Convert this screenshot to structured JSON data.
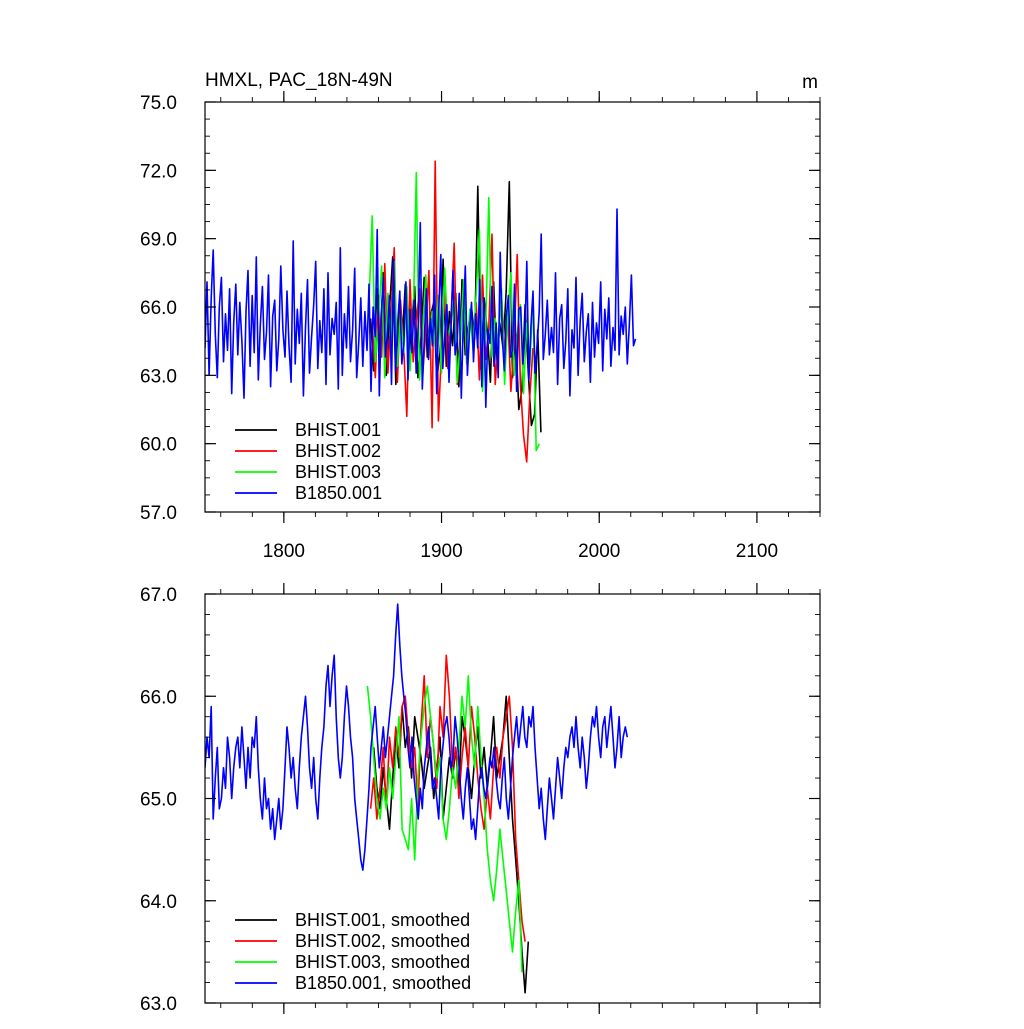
{
  "chart_data": [
    {
      "type": "line",
      "title": "HMXL, PAC_18N-49N",
      "units": "m",
      "xlim": [
        1750,
        2140
      ],
      "ylim": [
        57.0,
        75.0
      ],
      "xticks": [
        1800,
        1900,
        2000,
        2100
      ],
      "xtick_labels": [
        "1800",
        "1900",
        "2000",
        "2100"
      ],
      "yticks": [
        57.0,
        60.0,
        63.0,
        66.0,
        69.0,
        72.0,
        75.0
      ],
      "ytick_labels": [
        "57.0",
        "60.0",
        "63.0",
        "66.0",
        "69.0",
        "72.0",
        "75.0"
      ],
      "legend_position": "lower-left",
      "series": [
        {
          "name": "BHIST.001",
          "color": "#000000",
          "x_start": 1855,
          "x_step": 2,
          "values": [
            65.5,
            63.2,
            66.8,
            64.1,
            67.5,
            63.0,
            65.9,
            68.2,
            62.6,
            66.1,
            64.4,
            67.0,
            63.5,
            65.2,
            66.9,
            62.9,
            64.7,
            67.3,
            63.8,
            65.6,
            66.2,
            62.8,
            64.0,
            68.1,
            63.4,
            65.8,
            64.3,
            66.6,
            62.5,
            67.2,
            63.9,
            65.1,
            66.0,
            64.6,
            71.3,
            63.3,
            66.4,
            64.9,
            62.7,
            67.1,
            63.6,
            65.3,
            64.2,
            66.7,
            71.5,
            62.9,
            64.8,
            61.5,
            62.4,
            66.1,
            63.1,
            60.8,
            61.3,
            65.0,
            60.5
          ]
        },
        {
          "name": "BHIST.002",
          "color": "#ff0000",
          "x_start": 1856,
          "x_step": 2,
          "values": [
            65.3,
            62.9,
            66.5,
            63.8,
            67.9,
            63.1,
            65.7,
            68.6,
            62.7,
            66.3,
            64.2,
            61.2,
            67.2,
            63.6,
            65.4,
            66.8,
            63.0,
            64.9,
            67.6,
            60.7,
            72.4,
            61.0,
            64.1,
            66.7,
            63.3,
            65.5,
            68.8,
            62.6,
            64.8,
            67.0,
            63.5,
            65.9,
            64.5,
            66.2,
            62.8,
            67.4,
            63.7,
            65.1,
            69.2,
            62.6,
            64.6,
            66.5,
            63.9,
            65.6,
            62.3,
            64.4,
            68.3,
            62.6,
            60.4,
            59.2,
            62.1,
            64.2
          ]
        },
        {
          "name": "BHIST.003",
          "color": "#00ff00",
          "x_start": 1854,
          "x_step": 2,
          "values": [
            66.2,
            70.0,
            63.6,
            65.3,
            67.8,
            62.9,
            66.6,
            64.5,
            68.0,
            63.4,
            65.7,
            64.0,
            66.9,
            63.2,
            65.4,
            71.9,
            62.8,
            64.9,
            67.4,
            63.9,
            65.8,
            64.2,
            66.5,
            63.1,
            67.7,
            64.7,
            65.2,
            66.3,
            62.7,
            64.6,
            67.2,
            63.5,
            65.9,
            64.1,
            66.6,
            69.4,
            62.3,
            65.0,
            70.8,
            63.8,
            65.5,
            64.3,
            66.8,
            62.6,
            65.7,
            67.5,
            63.0,
            64.8,
            66.1,
            62.2,
            65.3,
            63.4,
            66.4,
            59.7,
            60.0
          ]
        },
        {
          "name": "B1850.001",
          "color": "#0000ff",
          "x_start": 1750,
          "x_step": 1.3,
          "values": [
            64.2,
            67.1,
            63.0,
            66.4,
            68.5,
            64.8,
            62.9,
            66.0,
            67.3,
            63.6,
            65.7,
            64.1,
            66.8,
            62.2,
            65.3,
            67.0,
            63.9,
            66.2,
            64.5,
            62.0,
            65.8,
            67.6,
            63.4,
            66.5,
            64.0,
            68.2,
            62.8,
            65.2,
            66.9,
            63.7,
            64.9,
            67.4,
            62.5,
            65.6,
            66.3,
            63.2,
            64.6,
            67.8,
            65.0,
            63.8,
            66.7,
            64.3,
            62.7,
            68.9,
            63.5,
            65.9,
            64.4,
            66.6,
            62.1,
            65.1,
            67.2,
            63.1,
            64.7,
            66.1,
            68.0,
            63.3,
            65.4,
            64.0,
            66.8,
            62.6,
            67.5,
            63.9,
            65.5,
            64.8,
            66.2,
            62.4,
            68.6,
            63.0,
            65.7,
            64.2,
            66.9,
            63.6,
            65.0,
            67.7,
            62.9,
            64.5,
            66.4,
            63.4,
            65.8,
            64.1,
            67.0,
            62.3,
            66.0,
            64.7,
            69.4,
            62.1,
            65.6,
            67.3,
            63.8,
            64.9,
            66.5,
            62.6,
            68.1,
            63.2,
            65.3,
            66.7,
            63.5,
            64.4,
            67.1,
            62.8,
            65.9,
            64.0,
            66.3,
            63.1,
            65.2,
            69.7,
            62.4,
            64.6,
            66.8,
            63.7,
            65.5,
            64.3,
            67.4,
            62.2,
            65.8,
            68.3,
            63.3,
            64.8,
            66.1,
            62.7,
            65.1,
            67.6,
            63.9,
            64.5,
            66.6,
            62.0,
            65.4,
            67.8,
            63.0,
            64.9,
            66.2,
            63.6,
            65.7,
            64.2,
            67.2,
            62.5,
            66.4,
            61.6,
            65.0,
            64.4,
            66.9,
            63.4,
            65.3,
            62.9,
            68.4,
            64.7,
            63.2,
            65.6,
            66.5,
            63.8,
            64.1,
            67.0,
            62.3,
            65.9,
            66.0,
            63.5,
            64.6,
            68.0,
            62.8,
            65.2,
            66.7,
            63.1,
            64.3,
            65.8,
            69.2,
            63.7,
            64.8,
            66.3,
            63.9,
            65.1,
            64.0,
            67.5,
            62.6,
            65.5,
            66.1,
            63.3,
            64.5,
            66.8,
            62.1,
            65.0,
            64.2,
            67.3,
            63.0,
            65.4,
            66.6,
            63.6,
            64.9,
            65.7,
            62.7,
            66.2,
            63.8,
            65.3,
            64.4,
            67.1,
            63.2,
            65.9,
            64.6,
            66.4,
            63.4,
            65.1,
            64.1,
            70.3,
            63.9,
            65.6,
            64.8,
            66.0,
            63.5,
            65.2,
            67.4,
            64.3,
            64.6
          ]
        }
      ]
    },
    {
      "type": "line",
      "title": "",
      "xlim": [
        1750,
        2140
      ],
      "ylim": [
        63.0,
        67.0
      ],
      "xticks": [
        1800,
        1900,
        2000,
        2100
      ],
      "xtick_labels": [],
      "yticks": [
        63.0,
        64.0,
        65.0,
        66.0,
        67.0
      ],
      "ytick_labels": [
        "63.0",
        "64.0",
        "65.0",
        "66.0",
        "67.0"
      ],
      "legend_position": "lower-left",
      "series": [
        {
          "name": "BHIST.001, smoothed",
          "color": "#000000",
          "x_start": 1857,
          "x_step": 2,
          "values": [
            65.5,
            65.1,
            64.9,
            65.3,
            65.0,
            64.7,
            65.2,
            65.6,
            65.3,
            65.9,
            65.5,
            65.7,
            65.2,
            65.8,
            65.6,
            65.4,
            65.1,
            65.3,
            65.5,
            65.0,
            65.3,
            65.6,
            64.8,
            65.1,
            65.4,
            65.2,
            65.5,
            65.1,
            65.8,
            65.6,
            65.3,
            65.0,
            65.4,
            65.7,
            65.2,
            65.5,
            65.1,
            65.4,
            65.8,
            65.2,
            65.4,
            65.6,
            66.0,
            65.4,
            64.8,
            64.4,
            64.0,
            63.5,
            63.1,
            63.6
          ]
        },
        {
          "name": "BHIST.002, smoothed",
          "color": "#ff0000",
          "x_start": 1855,
          "x_step": 2,
          "values": [
            64.9,
            65.2,
            64.8,
            65.1,
            65.5,
            64.9,
            65.6,
            65.3,
            65.7,
            65.4,
            65.9,
            66.0,
            65.6,
            65.3,
            65.5,
            64.9,
            65.7,
            66.2,
            65.4,
            65.8,
            65.5,
            65.1,
            65.9,
            65.6,
            66.4,
            66.0,
            65.3,
            65.5,
            65.0,
            65.4,
            65.7,
            65.3,
            65.9,
            65.6,
            65.2,
            64.9,
            64.7,
            65.1,
            64.8,
            65.3,
            65.5,
            65.2,
            65.6,
            65.8,
            66.0,
            65.5,
            64.6,
            64.2,
            63.8,
            63.6
          ]
        },
        {
          "name": "BHIST.003, smoothed",
          "color": "#00ff00",
          "x_start": 1853,
          "x_step": 2,
          "values": [
            66.1,
            65.8,
            65.4,
            65.0,
            64.8,
            65.1,
            64.9,
            65.3,
            65.0,
            65.4,
            65.8,
            64.7,
            64.6,
            64.5,
            65.0,
            64.4,
            65.2,
            65.6,
            65.9,
            66.1,
            65.8,
            65.5,
            65.2,
            65.4,
            64.8,
            64.6,
            64.9,
            65.3,
            65.1,
            65.5,
            66.0,
            65.7,
            66.2,
            65.6,
            65.3,
            65.9,
            65.4,
            65.0,
            64.5,
            64.2,
            64.0,
            64.3,
            64.7,
            64.4,
            64.1,
            63.8,
            63.5,
            63.9,
            64.2,
            63.3
          ]
        },
        {
          "name": "B1850.001, smoothed",
          "color": "#0000ff",
          "x_start": 1750,
          "x_step": 1.3,
          "values": [
            65.3,
            65.6,
            65.4,
            65.9,
            64.8,
            65.2,
            65.5,
            64.9,
            65.0,
            65.3,
            65.1,
            65.6,
            65.4,
            65.0,
            65.3,
            65.5,
            65.6,
            65.3,
            65.7,
            65.4,
            65.1,
            65.5,
            65.2,
            65.6,
            65.5,
            65.8,
            65.3,
            65.0,
            64.8,
            65.2,
            64.9,
            65.0,
            64.7,
            64.9,
            64.6,
            64.8,
            65.0,
            64.7,
            64.9,
            65.3,
            65.7,
            65.5,
            65.2,
            65.4,
            65.1,
            64.9,
            65.3,
            65.6,
            65.8,
            66.0,
            65.7,
            65.3,
            65.1,
            65.4,
            65.0,
            64.8,
            65.2,
            65.5,
            65.7,
            66.1,
            66.3,
            65.9,
            66.2,
            66.4,
            65.8,
            65.4,
            65.2,
            65.4,
            65.8,
            66.1,
            65.9,
            65.6,
            65.4,
            65.0,
            64.8,
            64.6,
            64.4,
            64.3,
            64.5,
            64.8,
            65.1,
            65.5,
            65.7,
            65.9,
            65.6,
            65.3,
            65.5,
            65.7,
            65.4,
            65.6,
            65.8,
            66.0,
            66.2,
            66.6,
            66.9,
            66.5,
            66.2,
            66.0,
            65.8,
            65.5,
            65.3,
            65.6,
            65.2,
            65.0,
            64.8,
            65.1,
            64.9,
            65.3,
            65.5,
            65.7,
            65.4,
            65.1,
            65.2,
            65.0,
            64.8,
            65.3,
            65.5,
            65.7,
            65.8,
            65.6,
            65.3,
            65.4,
            65.8,
            65.6,
            65.3,
            65.0,
            64.8,
            65.1,
            65.3,
            65.0,
            64.7,
            64.8,
            64.6,
            64.9,
            65.2,
            65.3,
            65.1,
            65.0,
            65.2,
            65.4,
            65.3,
            65.5,
            65.2,
            65.0,
            64.9,
            65.2,
            65.4,
            65.0,
            64.8,
            65.1,
            65.4,
            65.6,
            65.8,
            65.5,
            65.7,
            65.9,
            65.6,
            65.5,
            65.8,
            65.7,
            65.9,
            65.5,
            65.2,
            64.9,
            65.1,
            64.8,
            64.6,
            64.9,
            65.2,
            65.0,
            64.8,
            65.1,
            65.4,
            65.2,
            65.0,
            65.3,
            65.5,
            65.4,
            65.6,
            65.7,
            65.5,
            65.8,
            65.5,
            65.3,
            65.6,
            65.4,
            65.1,
            65.3,
            65.6,
            65.8,
            65.7,
            65.9,
            65.6,
            65.4,
            65.7,
            65.8,
            65.5,
            65.7,
            65.9,
            65.6,
            65.3,
            65.5,
            65.8,
            65.4,
            65.6,
            65.7,
            65.6
          ]
        }
      ]
    }
  ]
}
